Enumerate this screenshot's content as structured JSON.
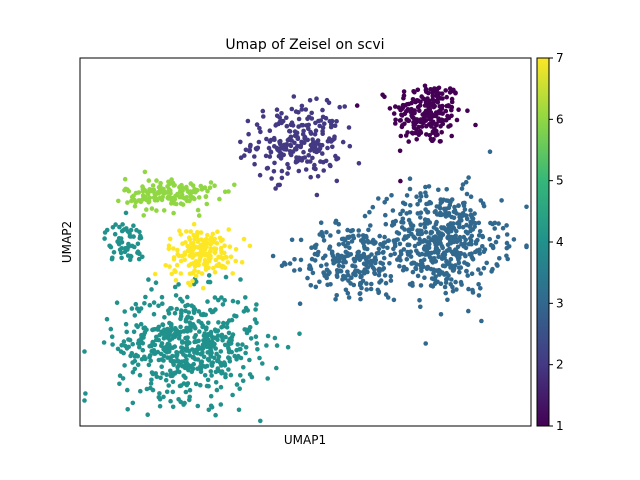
{
  "chart_data": {
    "type": "scatter",
    "title": "Umap of Zeisel on scvi",
    "xlabel": "UMAP1",
    "ylabel": "UMAP2",
    "xticks_shown": false,
    "yticks_shown": false,
    "xlim": [
      0,
      100
    ],
    "ylim": [
      0,
      100
    ],
    "colorbar": {
      "colormap": "viridis",
      "min": 1,
      "max": 7,
      "ticks": [
        1,
        2,
        3,
        4,
        5,
        6,
        7
      ],
      "tick_labels": [
        "1",
        "2",
        "3",
        "4",
        "5",
        "6",
        "7"
      ],
      "stops": [
        "#440154",
        "#443983",
        "#31688e",
        "#21918c",
        "#35b779",
        "#90d743",
        "#fde725"
      ]
    },
    "clusters": [
      {
        "value": 1,
        "color": "#440154",
        "center": [
          77,
          85
        ],
        "spread": [
          7,
          8
        ],
        "n": 220
      },
      {
        "value": 2,
        "color": "#443983",
        "center": [
          48,
          77
        ],
        "spread": [
          9,
          9
        ],
        "n": 230
      },
      {
        "value": 3,
        "color": "#31688e",
        "center": [
          80,
          50
        ],
        "spread": [
          12,
          13
        ],
        "n": 520
      },
      {
        "value": 3,
        "color": "#31688e",
        "center": [
          60,
          45
        ],
        "spread": [
          10,
          9
        ],
        "n": 220
      },
      {
        "value": 4,
        "color": "#21918c",
        "center": [
          24,
          22
        ],
        "spread": [
          14,
          13
        ],
        "n": 560
      },
      {
        "value": 4,
        "color": "#21918c",
        "center": [
          10,
          50
        ],
        "spread": [
          4,
          5
        ],
        "n": 60
      },
      {
        "value": 6,
        "color": "#90d743",
        "center": [
          20,
          63
        ],
        "spread": [
          9,
          4
        ],
        "n": 160
      },
      {
        "value": 7,
        "color": "#fde725",
        "center": [
          27,
          47
        ],
        "spread": [
          7,
          6
        ],
        "n": 180
      }
    ]
  }
}
